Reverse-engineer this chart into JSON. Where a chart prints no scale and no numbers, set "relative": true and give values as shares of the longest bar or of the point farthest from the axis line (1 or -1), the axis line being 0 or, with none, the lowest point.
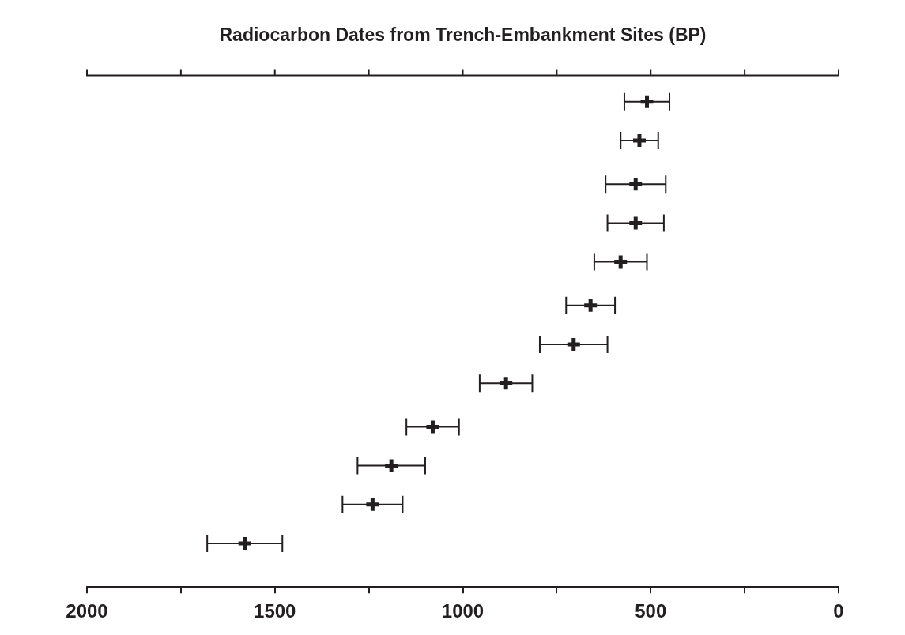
{
  "chart_data": {
    "type": "scatter",
    "title": "Radiocarbon Dates from Trench-Embankment Sites (BP)",
    "relative": true,
    "x": [
      510,
      530,
      540,
      540,
      580,
      660,
      705,
      885,
      1080,
      1190,
      1240,
      1580
    ],
    "values": [
      1,
      0.92,
      0.83,
      0.75,
      0.67,
      0.58,
      0.5,
      0.42,
      0.33,
      0.25,
      0.17,
      0.09
    ],
    "xerrors": [
      60,
      50,
      80,
      75,
      70,
      65,
      90,
      70,
      70,
      90,
      80,
      100
    ],
    "color": "#231f20",
    "marker": "cross",
    "grid": false,
    "legend": false,
    "xlim": [
      2000,
      0
    ],
    "xticks": [
      2000,
      {
        "value": 1750,
        "label": null
      },
      1500,
      {
        "value": 1250,
        "label": null
      },
      1000,
      {
        "value": 750,
        "label": null
      },
      500,
      {
        "value": 250,
        "label": null
      },
      0
    ]
  }
}
